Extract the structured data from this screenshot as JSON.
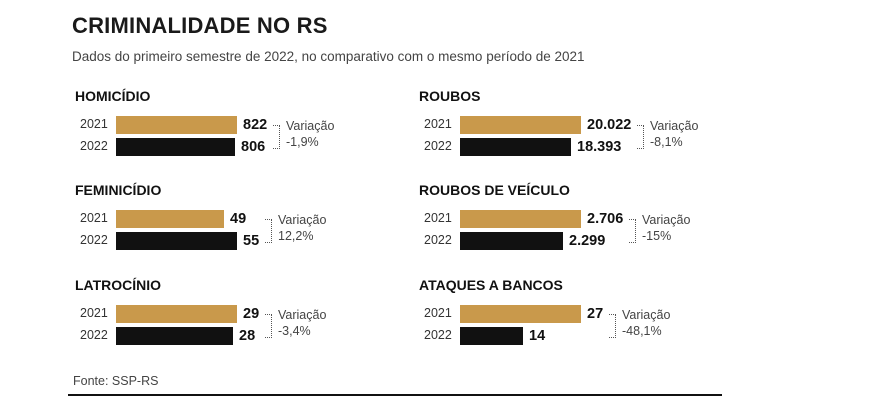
{
  "title": "CRIMINALIDADE NO RS",
  "subtitle": "Dados do primeiro semestre de 2022, no comparativo com o mesmo período de 2021",
  "source": "Fonte: SSP-RS",
  "colors": {
    "year_2021": "#c9994b",
    "year_2022": "#111111"
  },
  "chart_data": [
    {
      "type": "bar",
      "title": "HOMICÍDIO",
      "categories": [
        "2021",
        "2022"
      ],
      "values": [
        822,
        806
      ],
      "value_labels": [
        "822",
        "806"
      ],
      "variation_label": "Variação",
      "variation": "-1,9%"
    },
    {
      "type": "bar",
      "title": "ROUBOS",
      "categories": [
        "2021",
        "2022"
      ],
      "values": [
        20022,
        18393
      ],
      "value_labels": [
        "20.022",
        "18.393"
      ],
      "variation_label": "Variação",
      "variation": "-8,1%"
    },
    {
      "type": "bar",
      "title": "FEMINICÍDIO",
      "categories": [
        "2021",
        "2022"
      ],
      "values": [
        49,
        55
      ],
      "value_labels": [
        "49",
        "55"
      ],
      "variation_label": "Variação",
      "variation": "12,2%"
    },
    {
      "type": "bar",
      "title": "ROUBOS DE VEÍCULO",
      "categories": [
        "2021",
        "2022"
      ],
      "values": [
        2706,
        2299
      ],
      "value_labels": [
        "2.706",
        "2.299"
      ],
      "variation_label": "Variação",
      "variation": "-15%"
    },
    {
      "type": "bar",
      "title": "LATROCÍNIO",
      "categories": [
        "2021",
        "2022"
      ],
      "values": [
        29,
        28
      ],
      "value_labels": [
        "29",
        "28"
      ],
      "variation_label": "Variação",
      "variation": "-3,4%"
    },
    {
      "type": "bar",
      "title": "ATAQUES A BANCOS",
      "categories": [
        "2021",
        "2022"
      ],
      "values": [
        27,
        14
      ],
      "value_labels": [
        "27",
        "14"
      ],
      "variation_label": "Variação",
      "variation": "-48,1%"
    }
  ]
}
